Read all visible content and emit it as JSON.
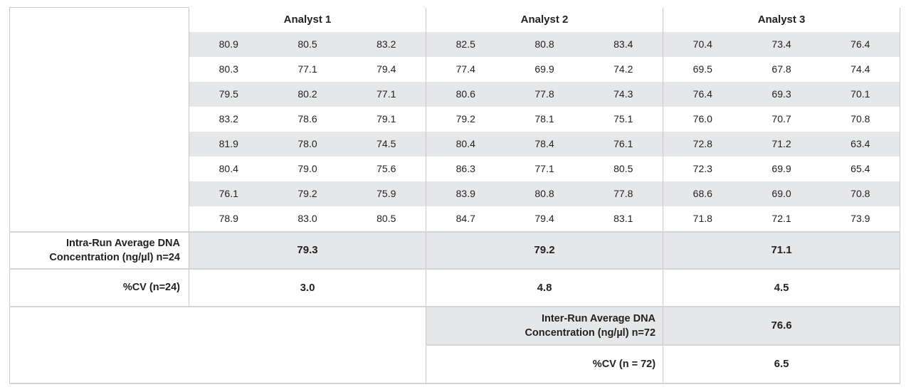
{
  "analysts": [
    "Analyst 1",
    "Analyst 2",
    "Analyst 3"
  ],
  "rows": [
    [
      "80.9",
      "80.5",
      "83.2",
      "82.5",
      "80.8",
      "83.4",
      "70.4",
      "73.4",
      "76.4"
    ],
    [
      "80.3",
      "77.1",
      "79.4",
      "77.4",
      "69.9",
      "74.2",
      "69.5",
      "67.8",
      "74.4"
    ],
    [
      "79.5",
      "80.2",
      "77.1",
      "80.6",
      "77.8",
      "74.3",
      "76.4",
      "69.3",
      "70.1"
    ],
    [
      "83.2",
      "78.6",
      "79.1",
      "79.2",
      "78.1",
      "75.1",
      "76.0",
      "70.7",
      "70.8"
    ],
    [
      "81.9",
      "78.0",
      "74.5",
      "80.4",
      "78.4",
      "76.1",
      "72.8",
      "71.2",
      "63.4"
    ],
    [
      "80.4",
      "79.0",
      "75.6",
      "86.3",
      "77.1",
      "80.5",
      "72.3",
      "69.9",
      "65.4"
    ],
    [
      "76.1",
      "79.2",
      "75.9",
      "83.9",
      "80.8",
      "77.8",
      "68.6",
      "69.0",
      "70.8"
    ],
    [
      "78.9",
      "83.0",
      "80.5",
      "84.7",
      "79.4",
      "83.1",
      "71.8",
      "72.1",
      "73.9"
    ]
  ],
  "intra_run": {
    "label_line1": "Intra-Run Average DNA",
    "label_line2": "Concentration (ng/µl) n=24",
    "values": [
      "79.3",
      "79.2",
      "71.1"
    ]
  },
  "cv": {
    "label": "%CV (n=24)",
    "values": [
      "3.0",
      "4.8",
      "4.5"
    ]
  },
  "inter_run": {
    "label_line1": "Inter-Run Average DNA",
    "label_line2": "Concentration (ng/µl) n=72",
    "value": "76.6"
  },
  "inter_cv": {
    "label": "%CV (n = 72)",
    "value": "6.5"
  },
  "colors": {
    "row_shade": "#e6e7e8",
    "grid": "#c8c8c8"
  }
}
